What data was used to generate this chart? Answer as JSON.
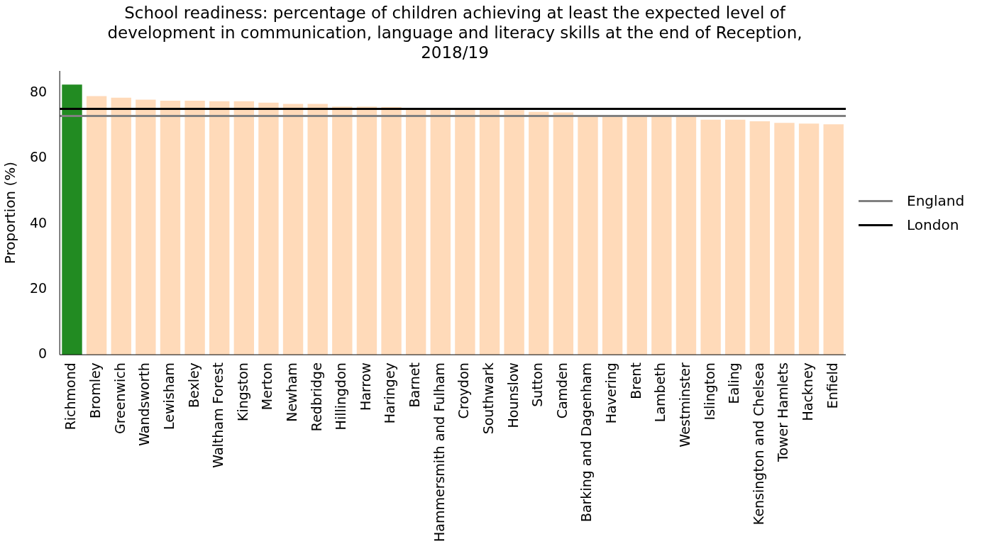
{
  "chart_data": {
    "type": "bar",
    "title": "School readiness: percentage of children achieving at least the expected level of development in communication, language and literacy skills at the end of Reception, 2018/19",
    "ylabel": "Proportion (%)",
    "categories": [
      "Richmond",
      "Bromley",
      "Greenwich",
      "Wandsworth",
      "Lewisham",
      "Bexley",
      "Waltham Forest",
      "Kingston",
      "Merton",
      "Newham",
      "Redbridge",
      "Hillingdon",
      "Harrow",
      "Haringey",
      "Barnet",
      "Hammersmith and Fulham",
      "Croydon",
      "Southwark",
      "Hounslow",
      "Sutton",
      "Camden",
      "Barking and Dagenham",
      "Havering",
      "Brent",
      "Lambeth",
      "Westminster",
      "Islington",
      "Ealing",
      "Kensington and Chelsea",
      "Tower Hamlets",
      "Hackney",
      "Enfield"
    ],
    "values": [
      82.6,
      79.1,
      78.6,
      78.0,
      77.7,
      77.7,
      77.5,
      77.5,
      77.1,
      76.7,
      76.7,
      75.9,
      75.9,
      75.8,
      75.0,
      75.0,
      75.0,
      75.0,
      74.8,
      74.3,
      74.1,
      72.8,
      72.8,
      72.8,
      72.8,
      72.8,
      71.9,
      71.9,
      71.4,
      70.9,
      70.7,
      70.5
    ],
    "colors": [
      "#228b22",
      "#ffdab9",
      "#ffdab9",
      "#ffdab9",
      "#ffdab9",
      "#ffdab9",
      "#ffdab9",
      "#ffdab9",
      "#ffdab9",
      "#ffdab9",
      "#ffdab9",
      "#ffdab9",
      "#ffdab9",
      "#ffdab9",
      "#ffdab9",
      "#ffdab9",
      "#ffdab9",
      "#ffdab9",
      "#ffdab9",
      "#ffdab9",
      "#ffdab9",
      "#ffdab9",
      "#ffdab9",
      "#ffdab9",
      "#ffdab9",
      "#ffdab9",
      "#ffdab9",
      "#ffdab9",
      "#ffdab9",
      "#ffdab9",
      "#ffdab9",
      "#ffdab9"
    ],
    "ylim": [
      0,
      86.8
    ],
    "yticks": [
      0,
      20,
      40,
      60,
      80
    ],
    "ref_lines": [
      {
        "axis": "y",
        "value": 73.0,
        "label": "England",
        "color": "#808080"
      },
      {
        "axis": "y",
        "value": 75.2,
        "label": "London",
        "color": "#000000"
      }
    ],
    "legend": "right",
    "grid": false
  }
}
